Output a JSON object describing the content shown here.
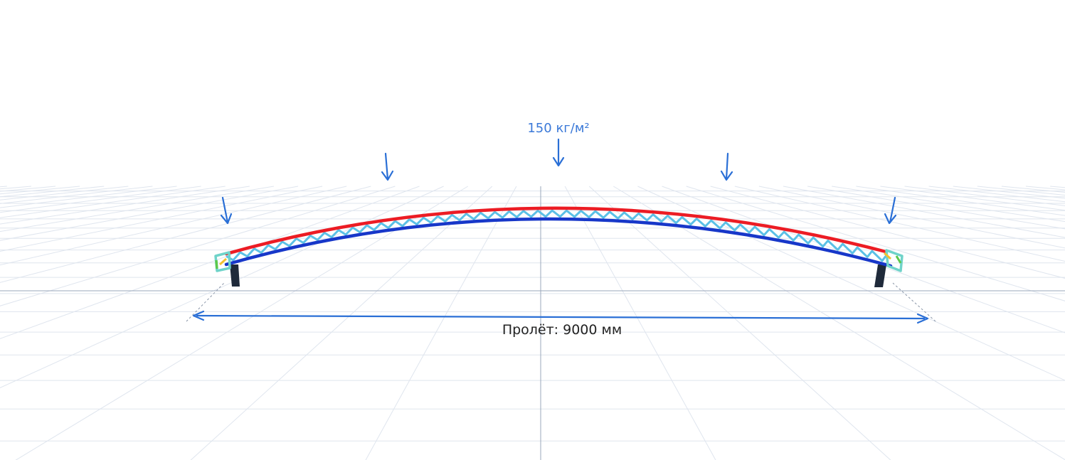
{
  "scene": {
    "load_label": "150 кг/м²",
    "span_label": "Пролёт: 9000 мм",
    "load_arrow_count": 5,
    "support_count": 2
  },
  "colors": {
    "background": "#ffffff",
    "grid_line": "#dfe5ee",
    "grid_axis": "#9aa7bb",
    "load_arrow": "#2a6fd6",
    "load_text": "#3b79d8",
    "top_chord": "#ec1c24",
    "bottom_chord": "#1737c9",
    "lattice": "#5bc0e6",
    "end_plate": "#6fd3c9",
    "end_accent_green": "#5cc84a",
    "end_accent_yellow": "#f2c230",
    "support": "#1f2a3a",
    "dimension_line": "#2a6fd6",
    "span_text": "#222222"
  },
  "icons": {
    "load_arrow": "down-arrow-icon",
    "dimension_arrow": "double-arrow-icon"
  }
}
